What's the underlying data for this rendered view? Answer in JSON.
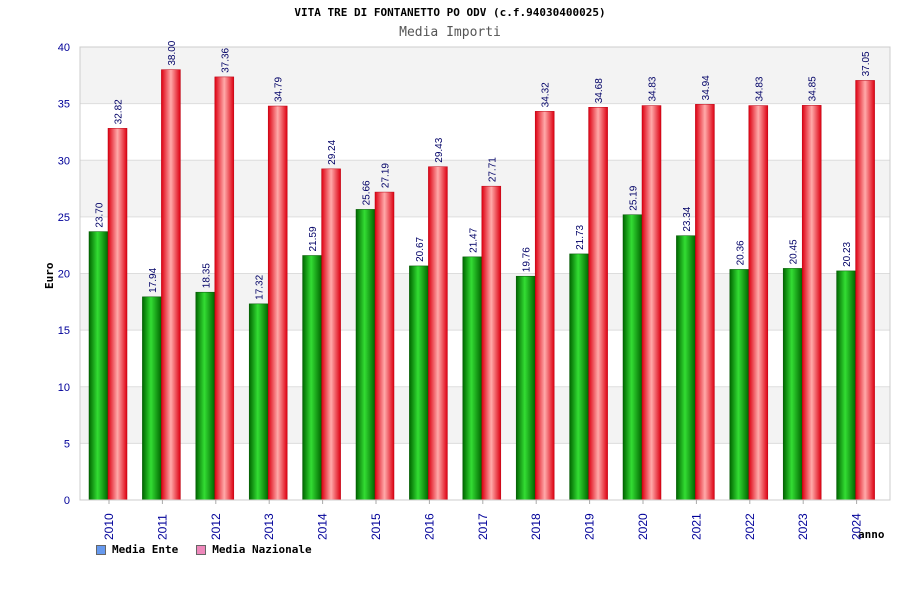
{
  "chart_data": {
    "type": "bar",
    "title": "VITA TRE DI FONTANETTO PO ODV (c.f.94030400025)",
    "subtitle": "Media Importi",
    "xlabel": "anno",
    "ylabel": "Euro",
    "ylim": [
      0,
      40
    ],
    "yticks": [
      0,
      5,
      10,
      15,
      20,
      25,
      30,
      35,
      40
    ],
    "grid": true,
    "legend_position": "bottom-left",
    "categories": [
      "2010",
      "2011",
      "2012",
      "2013",
      "2014",
      "2015",
      "2016",
      "2017",
      "2018",
      "2019",
      "2020",
      "2021",
      "2022",
      "2023",
      "2024"
    ],
    "series": [
      {
        "name": "Media Ente",
        "legend_color": "#6699ee",
        "bar_color": "#009900",
        "values": [
          23.7,
          17.94,
          18.35,
          17.32,
          21.59,
          25.66,
          20.67,
          21.47,
          19.76,
          21.73,
          25.19,
          23.34,
          20.36,
          20.45,
          20.23
        ],
        "labels": [
          "23.70",
          "17.94",
          "18.35",
          "17.32",
          "21.59",
          "25.66",
          "20.67",
          "21.47",
          "19.76",
          "21.73",
          "25.19",
          "23.34",
          "20.36",
          "20.45",
          "20.23"
        ]
      },
      {
        "name": "Media Nazionale",
        "legend_color": "#ee88bb",
        "bar_color": "#ee1122",
        "values": [
          32.82,
          38.0,
          37.36,
          34.79,
          29.24,
          27.19,
          29.43,
          27.71,
          34.32,
          34.68,
          34.83,
          34.94,
          34.83,
          34.85,
          37.05
        ],
        "labels": [
          "32.82",
          "38.00",
          "37.36",
          "34.79",
          "29.24",
          "27.19",
          "29.43",
          "27.71",
          "34.32",
          "34.68",
          "34.83",
          "34.94",
          "34.83",
          "34.85",
          "37.05"
        ]
      }
    ]
  }
}
